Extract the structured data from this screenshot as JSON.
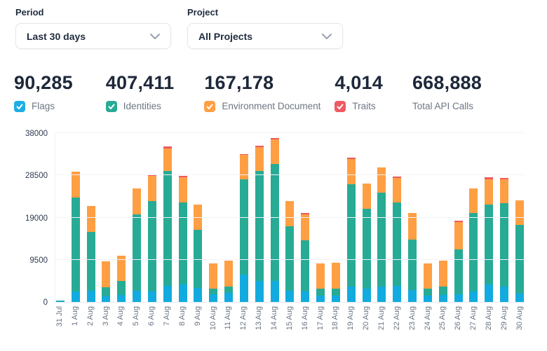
{
  "filters": {
    "period": {
      "label": "Period",
      "value": "Last 30 days"
    },
    "project": {
      "label": "Project",
      "value": "All Projects"
    }
  },
  "stats": [
    {
      "value": "90,285",
      "label": "Flags",
      "checkbox": true,
      "checkbox_color": "#1daee4"
    },
    {
      "value": "407,411",
      "label": "Identities",
      "checkbox": true,
      "checkbox_color": "#27ab95"
    },
    {
      "value": "167,178",
      "label": "Environment Document",
      "checkbox": true,
      "checkbox_color": "#ff9f43"
    },
    {
      "value": "4,014",
      "label": "Traits",
      "checkbox": true,
      "checkbox_color": "#ee5a62"
    },
    {
      "value": "668,888",
      "label": "Total API Calls",
      "checkbox": false,
      "checkbox_color": ""
    }
  ],
  "icons": {
    "dropdown_chevron": "chevron-down",
    "stat_checkbox": "checkmark"
  },
  "colors": {
    "heading_text": "#1d2839",
    "secondary_text": "#6d7684",
    "y_axis_text": "#2d3a4e",
    "x_axis_text": "#6a7484",
    "grid_line": "#f1f3f6",
    "control_border": "#e2e6ea",
    "flags": "#1daee4",
    "identities": "#27ab95",
    "environment_document": "#ff9f43",
    "traits": "#ee5a62"
  },
  "chart_data": {
    "type": "bar",
    "stacked": true,
    "title": "",
    "xlabel": "",
    "ylabel": "",
    "ylim": [
      0,
      38000
    ],
    "yticks": [
      0,
      9500,
      19000,
      28500,
      38000
    ],
    "grid": true,
    "legend_position": "top-stat-checkboxes",
    "categories": [
      "31 Jul",
      "1 Aug",
      "2 Aug",
      "3 Aug",
      "4 Aug",
      "5 Aug",
      "6 Aug",
      "7 Aug",
      "8 Aug",
      "9 Aug",
      "10 Aug",
      "11 Aug",
      "12 Aug",
      "13 Aug",
      "14 Aug",
      "15 Aug",
      "16 Aug",
      "17 Aug",
      "18 Aug",
      "19 Aug",
      "20 Aug",
      "21 Aug",
      "22 Aug",
      "23 Aug",
      "24 Aug",
      "25 Aug",
      "26 Aug",
      "27 Aug",
      "28 Aug",
      "29 Aug",
      "30 Aug"
    ],
    "series": [
      {
        "name": "Flags",
        "color": "#12abdf",
        "values": [
          60,
          2400,
          2500,
          1250,
          1550,
          2600,
          2400,
          3700,
          3900,
          3200,
          1700,
          2100,
          6100,
          4700,
          4800,
          2550,
          2300,
          1350,
          1450,
          3450,
          2950,
          3450,
          3550,
          2650,
          1450,
          1500,
          1750,
          2400,
          3900,
          3500,
          1850
        ]
      },
      {
        "name": "Identities",
        "color": "#27ab95",
        "values": [
          140,
          21200,
          13250,
          2050,
          3200,
          17200,
          20300,
          25900,
          18450,
          13050,
          1300,
          1350,
          21450,
          24800,
          26300,
          14500,
          11550,
          1600,
          1600,
          23050,
          18000,
          21100,
          18700,
          11400,
          1500,
          1850,
          10150,
          17700,
          18000,
          18750,
          15400
        ]
      },
      {
        "name": "Environment Document",
        "color": "#ff9f43",
        "values": [
          0,
          5800,
          5800,
          5900,
          5600,
          5800,
          5750,
          5000,
          5650,
          5600,
          5750,
          5900,
          5500,
          5350,
          5450,
          5700,
          5900,
          5700,
          5850,
          5650,
          5750,
          5600,
          5450,
          6050,
          5600,
          5900,
          6100,
          5500,
          5700,
          5350,
          5550
        ]
      },
      {
        "name": "Traits",
        "color": "#ee5a62",
        "values": [
          0,
          0,
          0,
          0,
          0,
          0,
          250,
          400,
          300,
          0,
          0,
          0,
          200,
          350,
          300,
          0,
          300,
          0,
          0,
          350,
          0,
          0,
          350,
          0,
          0,
          0,
          250,
          0,
          400,
          300,
          0
        ]
      }
    ]
  }
}
